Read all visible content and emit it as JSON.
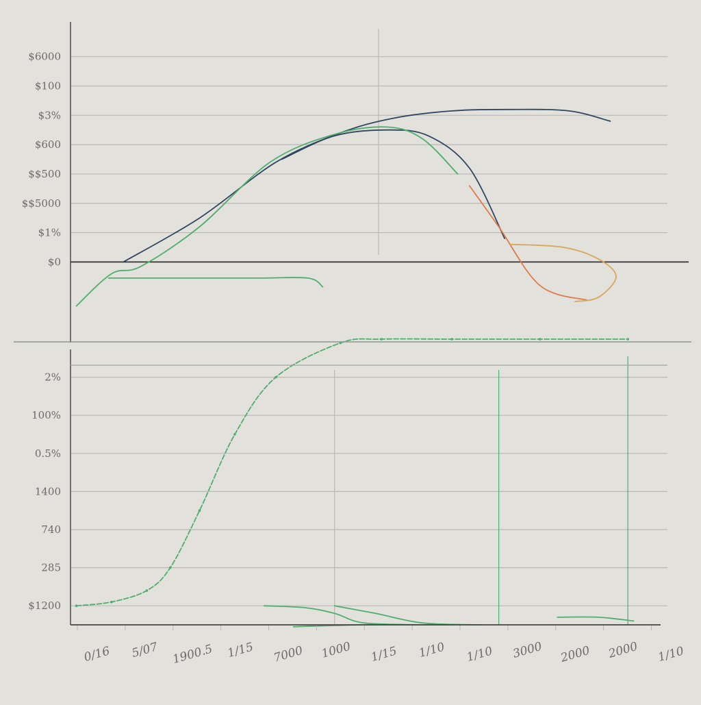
{
  "colors": {
    "background": "#e3e1dc",
    "grid": "#b9b8b3",
    "axis": "#555555",
    "navy": "#2f4660",
    "green": "#4fae6e",
    "orange": "#e07a4a",
    "tan": "#d9a65a"
  },
  "chart_data": [
    {
      "type": "line",
      "title": "",
      "xlabel": "",
      "ylabel": "",
      "grid": true,
      "legend": "none",
      "y_tick_labels": [
        "$6000",
        "$100",
        "$3%",
        "$600",
        "$$500",
        "$$5000",
        "$1%",
        "$0"
      ],
      "y_values": [
        7,
        6,
        5,
        4,
        3,
        2,
        1,
        0
      ],
      "ylim": [
        -2,
        7.6
      ],
      "xlim": [
        0,
        10
      ],
      "series": [
        {
          "color": "navy",
          "x": [
            0.9,
            2.2,
            3.5,
            4.6,
            5.5,
            6.5,
            7.5,
            8.5,
            9.2
          ],
          "y": [
            0.0,
            1.5,
            3.4,
            4.4,
            4.9,
            5.15,
            5.2,
            5.15,
            4.8
          ]
        },
        {
          "color": "navy",
          "x": [
            3.6,
            4.5,
            5.4,
            6.1,
            6.8,
            7.4
          ],
          "y": [
            3.5,
            4.3,
            4.5,
            4.3,
            3.2,
            0.8
          ]
        },
        {
          "color": "green",
          "x": [
            0.1,
            0.7,
            1.2,
            2.2,
            3.4,
            4.5,
            5.4,
            6.0,
            6.6
          ],
          "y": [
            -1.5,
            -0.4,
            -0.15,
            1.2,
            3.4,
            4.35,
            4.6,
            4.2,
            3.0
          ]
        },
        {
          "color": "orange",
          "x": [
            6.8,
            7.3,
            8.0,
            8.8
          ],
          "y": [
            2.6,
            1.2,
            -0.8,
            -1.3
          ]
        },
        {
          "color": "tan",
          "x": [
            7.5,
            8.4,
            9.0,
            9.3,
            9.0,
            8.6
          ],
          "y": [
            0.6,
            0.5,
            0.1,
            -0.5,
            -1.2,
            -1.35
          ]
        },
        {
          "color": "green",
          "x": [
            0.65,
            2.0,
            3.2,
            4.05,
            4.3
          ],
          "y": [
            -0.55,
            -0.55,
            -0.55,
            -0.55,
            -0.85
          ]
        }
      ]
    },
    {
      "type": "line",
      "title": "",
      "xlabel": "",
      "ylabel": "",
      "grid": true,
      "legend": "none",
      "y_tick_labels": [
        "2%",
        "100%",
        "0.5%",
        "1400",
        "740",
        "285",
        "$1200"
      ],
      "y_values": [
        6,
        5,
        4,
        3,
        2,
        1,
        0
      ],
      "ylim": [
        -0.5,
        7
      ],
      "x_tick_labels": [
        "0/16",
        "5/07",
        "1900.5",
        "1/15",
        "7000",
        "1000",
        "1/15",
        "1/10",
        "1/10",
        "3000",
        "2000",
        "2000",
        "1/10"
      ],
      "xlim": [
        0,
        10
      ],
      "series": [
        {
          "color": "green",
          "dashed": true,
          "x": [
            0.1,
            0.7,
            1.3,
            1.7,
            2.2,
            2.8,
            3.5,
            4.6,
            5.3,
            6.5,
            8.0,
            9.5
          ],
          "y": [
            0.0,
            0.1,
            0.4,
            1.0,
            2.5,
            4.5,
            6.0,
            6.9,
            7.0,
            7.0,
            7.0,
            7.0
          ]
        },
        {
          "color": "green",
          "x": [
            3.3,
            4.0,
            4.5,
            5.0,
            6.0
          ],
          "y": [
            0.0,
            -0.05,
            -0.2,
            -0.45,
            -0.5
          ]
        },
        {
          "color": "green",
          "x": [
            4.5,
            5.2,
            6.0,
            7.0
          ],
          "y": [
            0.0,
            -0.2,
            -0.45,
            -0.5
          ]
        },
        {
          "color": "green",
          "x": [
            3.8,
            5.0,
            6.5
          ],
          "y": [
            -0.55,
            -0.5,
            -0.5
          ]
        },
        {
          "color": "green",
          "x": [
            8.3,
            9.0,
            9.6
          ],
          "y": [
            -0.3,
            -0.3,
            -0.4
          ]
        }
      ]
    }
  ]
}
